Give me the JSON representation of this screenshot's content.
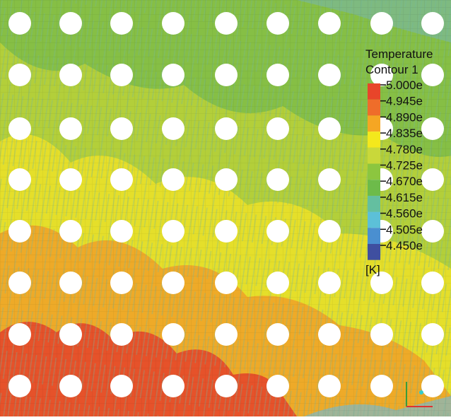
{
  "legend": {
    "title": "Temperature",
    "subtitle": "Contour 1",
    "levels": [
      "5.000e",
      "4.945e",
      "4.890e",
      "4.835e",
      "4.780e",
      "4.725e",
      "4.670e",
      "4.615e",
      "4.560e",
      "4.505e",
      "4.450e"
    ],
    "unit": "[K]"
  }
}
